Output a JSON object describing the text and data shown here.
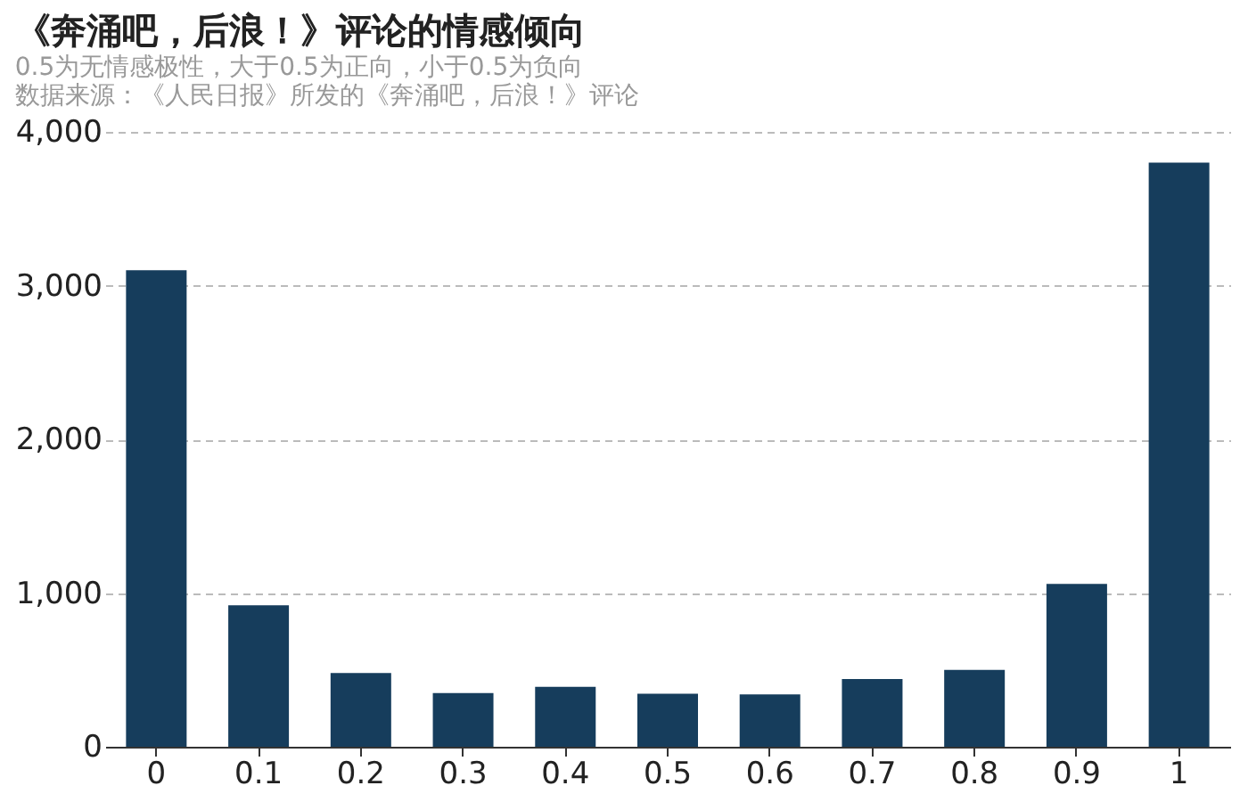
{
  "chart_data": {
    "type": "bar",
    "title": "《奔涌吧，后浪！》评论的情感倾向",
    "subtitle": [
      "0.5为无情感极性，大于0.5为正向，小于0.5为负向",
      "数据来源：《人民日报》所发的《奔涌吧，后浪！》评论"
    ],
    "categories": [
      "0",
      "0.1",
      "0.2",
      "0.3",
      "0.4",
      "0.5",
      "0.6",
      "0.7",
      "0.8",
      "0.9",
      "1"
    ],
    "values": [
      3100,
      920,
      480,
      350,
      390,
      345,
      340,
      440,
      500,
      1060,
      3800
    ],
    "color": "#163d5c",
    "ylim": [
      0,
      4000
    ],
    "yticks": [
      0,
      {
        "value": 1000,
        "label": "1,000"
      },
      {
        "value": 2000,
        "label": "2,000"
      },
      {
        "value": 3000,
        "label": "3,000"
      },
      {
        "value": 4000,
        "label": "4,000"
      }
    ],
    "grid": "y",
    "line_style": "dashed"
  }
}
